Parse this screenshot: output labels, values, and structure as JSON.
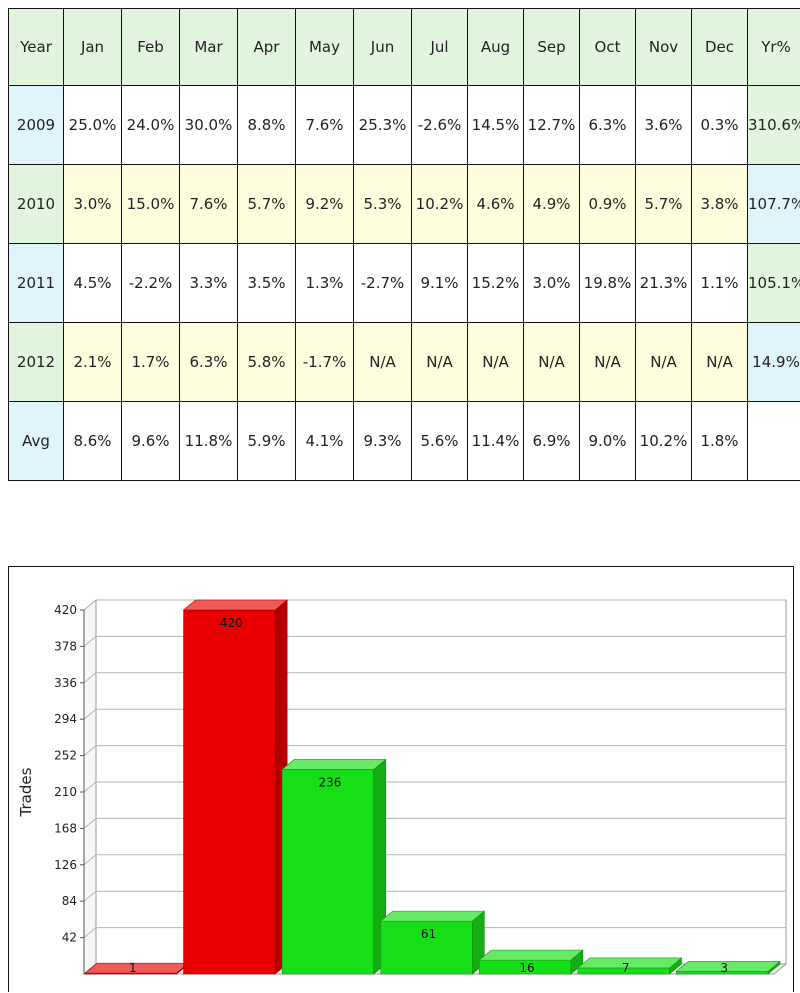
{
  "table": {
    "header": [
      "Year",
      "Jan",
      "Feb",
      "Mar",
      "Apr",
      "May",
      "Jun",
      "Jul",
      "Aug",
      "Sep",
      "Oct",
      "Nov",
      "Dec",
      "Yr%"
    ],
    "rows": [
      {
        "year": "2009",
        "months": [
          "25.0%",
          "24.0%",
          "30.0%",
          "8.8%",
          "7.6%",
          "25.3%",
          "-2.6%",
          "14.5%",
          "12.7%",
          "6.3%",
          "3.6%",
          "0.3%"
        ],
        "total": "310.6%"
      },
      {
        "year": "2010",
        "months": [
          "3.0%",
          "15.0%",
          "7.6%",
          "5.7%",
          "9.2%",
          "5.3%",
          "10.2%",
          "4.6%",
          "4.9%",
          "0.9%",
          "5.7%",
          "3.8%"
        ],
        "total": "107.7%"
      },
      {
        "year": "2011",
        "months": [
          "4.5%",
          "-2.2%",
          "3.3%",
          "3.5%",
          "1.3%",
          "-2.7%",
          "9.1%",
          "15.2%",
          "3.0%",
          "19.8%",
          "21.3%",
          "1.1%"
        ],
        "total": "105.1%"
      },
      {
        "year": "2012",
        "months": [
          "2.1%",
          "1.7%",
          "6.3%",
          "5.8%",
          "-1.7%",
          "N/A",
          "N/A",
          "N/A",
          "N/A",
          "N/A",
          "N/A",
          "N/A"
        ],
        "total": "14.9%"
      }
    ],
    "avg": {
      "label": "Avg",
      "months": [
        "8.6%",
        "9.6%",
        "11.8%",
        "5.9%",
        "4.1%",
        "9.3%",
        "5.6%",
        "11.4%",
        "6.9%",
        "9.0%",
        "10.2%",
        "1.8%"
      ],
      "total": ""
    }
  },
  "chart_data": {
    "type": "bar",
    "ylabel": "Trades",
    "ylim": [
      0,
      420
    ],
    "yticks": [
      42,
      84,
      126,
      168,
      210,
      252,
      294,
      336,
      378,
      420
    ],
    "values": [
      1,
      420,
      236,
      61,
      16,
      7,
      3
    ],
    "value_labels": [
      "1",
      "420",
      "236",
      "61",
      "16",
      "7",
      "3"
    ],
    "bar_colors": [
      "#e80000",
      "#e80000",
      "#17df17",
      "#17df17",
      "#17df17",
      "#17df17",
      "#17df17"
    ],
    "grid": true,
    "style": "3d"
  }
}
